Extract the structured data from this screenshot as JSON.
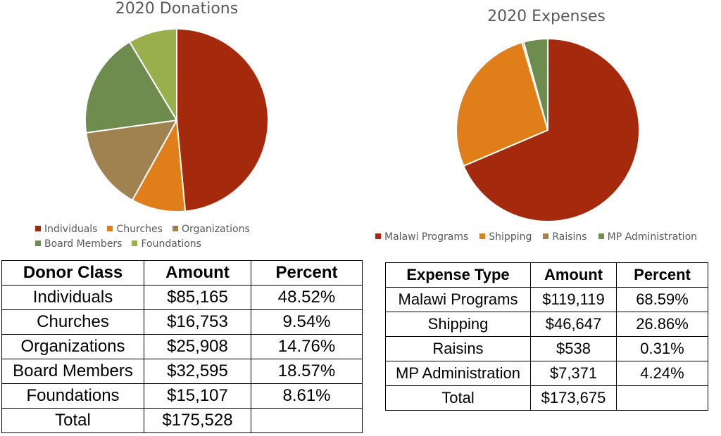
{
  "chart_data": [
    {
      "type": "pie",
      "title": "2020 Donations",
      "legend_position": "bottom",
      "categories": [
        "Individuals",
        "Churches",
        "Organizations",
        "Board Members",
        "Foundations"
      ],
      "values": [
        48.52,
        9.54,
        14.76,
        18.57,
        8.61
      ],
      "colors": [
        "#A52A0D",
        "#E07E1A",
        "#A08150",
        "#6D8C4E",
        "#98AF4C"
      ]
    },
    {
      "type": "pie",
      "title": "2020 Expenses",
      "legend_position": "bottom",
      "categories": [
        "Malawi Programs",
        "Shipping",
        "Raisins",
        "MP Administration"
      ],
      "values": [
        68.59,
        26.86,
        0.31,
        4.24
      ],
      "colors": [
        "#A52A0D",
        "#E07E1A",
        "#A08150",
        "#6D8C4E"
      ]
    }
  ],
  "donor_table": {
    "headers": [
      "Donor Class",
      "Amount",
      "Percent"
    ],
    "rows": [
      [
        "Individuals",
        "$85,165",
        "48.52%"
      ],
      [
        "Churches",
        "$16,753",
        "9.54%"
      ],
      [
        "Organizations",
        "$25,908",
        "14.76%"
      ],
      [
        "Board Members",
        "$32,595",
        "18.57%"
      ],
      [
        "Foundations",
        "$15,107",
        "8.61%"
      ],
      [
        "Total",
        "$175,528",
        ""
      ]
    ]
  },
  "expense_table": {
    "headers": [
      "Expense Type",
      "Amount",
      "Percent"
    ],
    "rows": [
      [
        "Malawi Programs",
        "$119,119",
        "68.59%"
      ],
      [
        "Shipping",
        "$46,647",
        "26.86%"
      ],
      [
        "Raisins",
        "$538",
        "0.31%"
      ],
      [
        "MP Administration",
        "$7,371",
        "4.24%"
      ],
      [
        "Total",
        "$173,675",
        ""
      ]
    ]
  }
}
